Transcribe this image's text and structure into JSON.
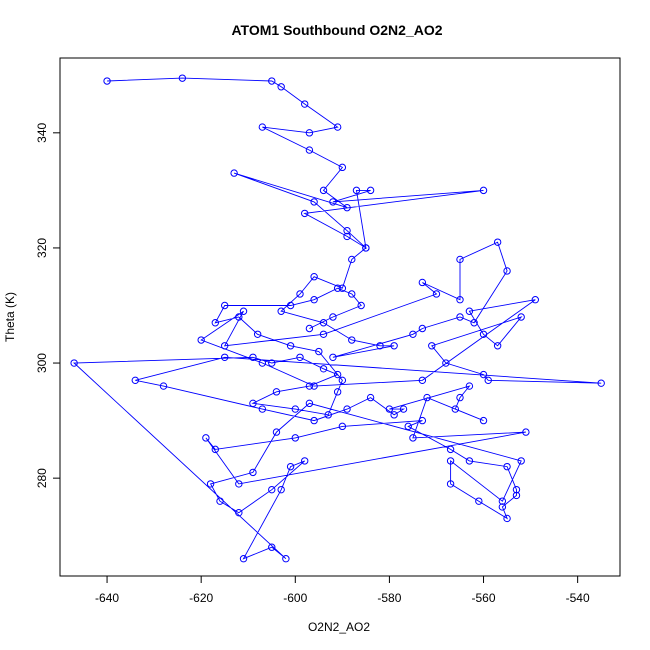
{
  "chart_data": {
    "type": "scatter",
    "title": "ATOM1 Southbound O2N2_AO2",
    "xlabel": "O2N2_AO2",
    "ylabel": "Theta (K)",
    "xlim": [
      -650,
      -531
    ],
    "ylim": [
      263,
      353
    ],
    "x_ticks": [
      -640,
      -620,
      -600,
      -580,
      -560,
      -540
    ],
    "y_ticks": [
      280,
      300,
      320,
      340
    ],
    "colors": {
      "series": "#0000ff",
      "axes": "#000000",
      "background": "#ffffff"
    },
    "grid": false,
    "connected": true,
    "marker": "open-circle",
    "series": [
      {
        "x": [
          -640,
          -624,
          -605,
          -603,
          -598,
          -591,
          -597,
          -607,
          -597,
          -590,
          -594,
          -589,
          -613,
          -596,
          -589,
          -585,
          -587,
          -584,
          -592,
          -560,
          -598,
          -589,
          -585,
          -588,
          -590,
          -596,
          -599,
          -603,
          -594,
          -588,
          -582,
          -579,
          -592,
          -575,
          -573,
          -565,
          -562,
          -555,
          -557,
          -565,
          -565,
          -573,
          -570,
          -594,
          -615,
          -611,
          -620,
          -607,
          -596,
          -573,
          -549,
          -563,
          -560,
          -557,
          -552,
          -571,
          -568,
          -560,
          -559,
          -535,
          -615,
          -634,
          -628,
          -607,
          -596,
          -589,
          -584,
          -579,
          -577,
          -580,
          -563,
          -565,
          -566,
          -560,
          -572,
          -575,
          -551,
          -612,
          -619,
          -617,
          -600,
          -590,
          -573,
          -576,
          -567,
          -563,
          -555,
          -553,
          -553,
          -556,
          -555,
          -561,
          -567,
          -567,
          -556,
          -552,
          -597,
          -604,
          -609,
          -618,
          -616,
          -612,
          -605,
          -598,
          -601,
          -603,
          -611,
          -605,
          -602,
          -647,
          -609,
          -605,
          -599,
          -594,
          -591,
          -597,
          -604,
          -609,
          -600,
          -593,
          -591,
          -590,
          -595,
          -601,
          -608,
          -612,
          -617,
          -615,
          -601,
          -596,
          -591,
          -588,
          -586,
          -592,
          -597
        ],
        "y": [
          349,
          349.5,
          349,
          348,
          345,
          341,
          340,
          341,
          337,
          334,
          330,
          327,
          333,
          328,
          323,
          320,
          330,
          330,
          328,
          330,
          326,
          322,
          320,
          318,
          313,
          315,
          312,
          309,
          307,
          304,
          303,
          303,
          301,
          305,
          306,
          308,
          307,
          316,
          321,
          318,
          311,
          314,
          312,
          305,
          303,
          309,
          304,
          300,
          296,
          297,
          311,
          309,
          305,
          303,
          308,
          303,
          300,
          298,
          297,
          296.5,
          301,
          297,
          296,
          292,
          290,
          292,
          294,
          291,
          292,
          292,
          296,
          294,
          292,
          290,
          294,
          287,
          288,
          279,
          287,
          285,
          287,
          289,
          290,
          289,
          285,
          283,
          282,
          278,
          277,
          275,
          273,
          276,
          279,
          283,
          276,
          283,
          293,
          288,
          281,
          279,
          276,
          274,
          278,
          283,
          282,
          278,
          266,
          268,
          266,
          300,
          301,
          300,
          301,
          299,
          298,
          296,
          295,
          293,
          292,
          291,
          295,
          297,
          302,
          303,
          305,
          308,
          307,
          310,
          310,
          311,
          313,
          312,
          310,
          308,
          306
        ]
      }
    ]
  }
}
